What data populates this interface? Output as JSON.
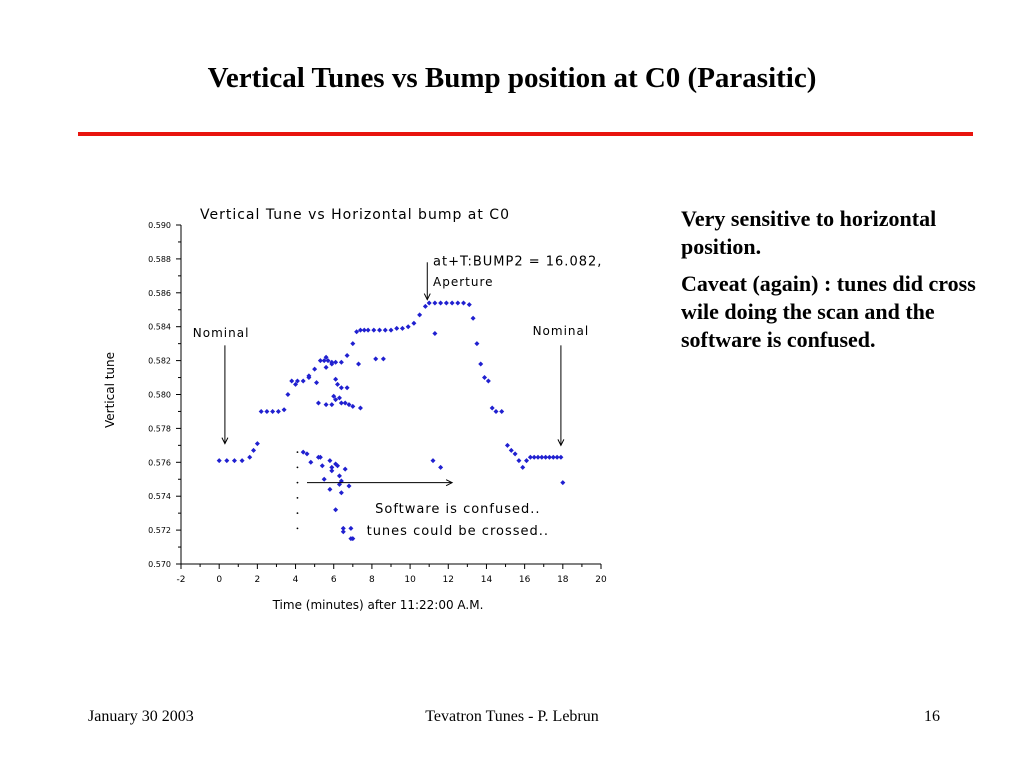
{
  "slide": {
    "title": "Vertical Tunes vs Bump position at C0 (Parasitic)",
    "accent_color": "#e8140e",
    "notes": [
      "Very sensitive to horizontal position.",
      "Caveat (again) : tunes did cross wile doing the scan and the software is confused."
    ]
  },
  "footer": {
    "date": "January 30  2003",
    "center": "Tevatron Tunes - P. Lebrun",
    "page": "16"
  },
  "chart_data": {
    "type": "scatter",
    "title": "Vertical Tune vs Horizontal bump at C0",
    "xlabel": "Time (minutes) after 11:22:00 A.M.",
    "ylabel": "Vertical tune",
    "xlim": [
      -2,
      20
    ],
    "ylim": [
      0.57,
      0.59
    ],
    "x_ticks": [
      "-2",
      "0",
      "2",
      "4",
      "6",
      "8",
      "10",
      "12",
      "14",
      "16",
      "18",
      "20"
    ],
    "y_ticks": [
      "0.570",
      "0.572",
      "0.574",
      "0.576",
      "0.578",
      "0.580",
      "0.582",
      "0.584",
      "0.586",
      "0.588",
      "0.590"
    ],
    "grid": false,
    "marker_color": "#2020d0",
    "series": [
      {
        "x": [
          0.0,
          0.4,
          0.8,
          1.2,
          1.6,
          1.8,
          2.0,
          2.2,
          2.5,
          2.8,
          3.1,
          3.4,
          3.6,
          3.8,
          4.1,
          4.4,
          4.7,
          5.0,
          5.3,
          5.5,
          5.7,
          5.9,
          6.1,
          6.4,
          6.7,
          7.0,
          7.2,
          7.4,
          7.6,
          7.8,
          8.1,
          8.4,
          8.7,
          9.0,
          9.3,
          9.6,
          9.9,
          10.2,
          10.5,
          10.8,
          11.0,
          11.3,
          11.6,
          11.9,
          12.2,
          12.5,
          12.8,
          13.1,
          13.3,
          13.5,
          13.7,
          13.9,
          14.1,
          14.3,
          14.5,
          14.8,
          15.1,
          15.3,
          15.5,
          15.7,
          15.9,
          16.1,
          16.3,
          16.5,
          16.7,
          16.9,
          17.1,
          17.3,
          17.5,
          17.7,
          17.9
        ],
        "y": [
          0.5761,
          0.5761,
          0.5761,
          0.5761,
          0.5763,
          0.5767,
          0.5771,
          0.579,
          0.579,
          0.579,
          0.579,
          0.5791,
          0.58,
          0.5808,
          0.5808,
          0.5808,
          0.581,
          0.5815,
          0.582,
          0.582,
          0.582,
          0.5819,
          0.5819,
          0.5819,
          0.5823,
          0.583,
          0.5837,
          0.5838,
          0.5838,
          0.5838,
          0.5838,
          0.5838,
          0.5838,
          0.5838,
          0.5839,
          0.5839,
          0.584,
          0.5842,
          0.5847,
          0.5852,
          0.5854,
          0.5854,
          0.5854,
          0.5854,
          0.5854,
          0.5854,
          0.5854,
          0.5853,
          0.5845,
          0.583,
          0.5818,
          0.581,
          0.5808,
          0.5792,
          0.579,
          0.579,
          0.577,
          0.5767,
          0.5765,
          0.5761,
          0.5757,
          0.5761,
          0.5763,
          0.5763,
          0.5763,
          0.5763,
          0.5763,
          0.5763,
          0.5763,
          0.5763,
          0.5763
        ]
      },
      {
        "x": [
          4.0,
          4.7,
          5.1,
          5.6,
          7.3,
          8.2,
          8.6,
          11.3,
          5.6,
          5.9,
          6.4,
          6.1,
          6.2,
          6.7,
          6.0,
          6.3,
          6.1,
          6.6,
          5.2,
          5.6,
          5.9,
          6.4,
          6.8,
          7.0,
          7.4,
          4.6,
          5.3,
          5.8,
          5.4,
          6.1,
          5.9,
          6.3,
          6.3,
          6.4,
          6.9,
          11.2,
          11.6,
          18.0
        ],
        "y": [
          0.5806,
          0.5811,
          0.5807,
          0.5816,
          0.5818,
          0.5821,
          0.5821,
          0.5836,
          0.5822,
          0.5818,
          0.5804,
          0.5809,
          0.5806,
          0.5804,
          0.5799,
          0.5798,
          0.5797,
          0.5795,
          0.5795,
          0.5794,
          0.5794,
          0.5795,
          0.5794,
          0.5793,
          0.5792,
          0.5765,
          0.5763,
          0.5761,
          0.5758,
          0.5759,
          0.5755,
          0.5752,
          0.5747,
          0.5742,
          0.5715,
          0.5761,
          0.5757,
          0.5748
        ]
      },
      {
        "x": [
          4.4,
          4.8,
          5.2,
          5.9,
          6.2,
          6.6,
          5.5,
          5.8,
          6.4,
          6.8,
          6.1,
          6.5,
          6.9,
          6.5,
          7.0
        ],
        "y": [
          0.5766,
          0.576,
          0.5763,
          0.5757,
          0.5758,
          0.5756,
          0.575,
          0.5744,
          0.5749,
          0.5746,
          0.5732,
          0.5721,
          0.5721,
          0.5719,
          0.5715
        ]
      }
    ],
    "annotations": [
      {
        "text": "at+T:BUMP2 = 16.082,",
        "x": 11.0,
        "y": 0.5876
      },
      {
        "text": "Aperture",
        "x": 11.5,
        "y": 0.5864
      },
      {
        "text": "Nominal",
        "x": 0.1,
        "y": 0.5834
      },
      {
        "text": "Nominal",
        "x": 17.9,
        "y": 0.5835
      },
      {
        "text": "Software is confused..",
        "x": 12.5,
        "y": 0.573
      },
      {
        "text": "tunes could be crossed..",
        "x": 12.5,
        "y": 0.5717
      }
    ]
  }
}
